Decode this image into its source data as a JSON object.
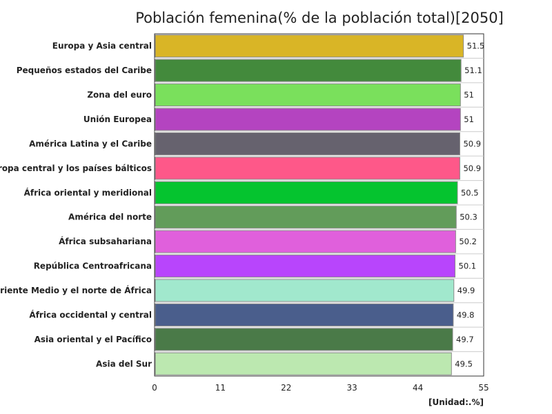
{
  "chart_data": {
    "type": "bar",
    "orientation": "horizontal",
    "title": "Población femenina(% de la población total)[2050]",
    "unit_label": "[Unidad:.%]",
    "xlim": [
      0,
      55
    ],
    "x_ticks": [
      0,
      11,
      22,
      33,
      44,
      55
    ],
    "grid": false,
    "categories": [
      "Europa y Asia central",
      "Pequeños estados del Caribe",
      "Zona del euro",
      "Unión Europea",
      "América Latina y el Caribe",
      "Europa central y los países bálticos",
      "África oriental y meridional",
      "América del norte",
      "África subsahariana",
      "República Centroafricana",
      "Oriente Medio y el norte de África",
      "África occidental y central",
      "Asia oriental y el Pacífico",
      "Asia del Sur"
    ],
    "values": [
      51.5,
      51.1,
      51,
      51,
      50.9,
      50.9,
      50.5,
      50.3,
      50.2,
      50.1,
      49.9,
      49.8,
      49.7,
      49.5
    ],
    "colors": [
      "#d9b526",
      "#438a3c",
      "#7ae05c",
      "#b444c0",
      "#66626e",
      "#fe5889",
      "#05c42f",
      "#629c5a",
      "#e060dc",
      "#b845fc",
      "#a1e8cd",
      "#4a5e8c",
      "#4a7a48",
      "#bce8b0"
    ]
  }
}
